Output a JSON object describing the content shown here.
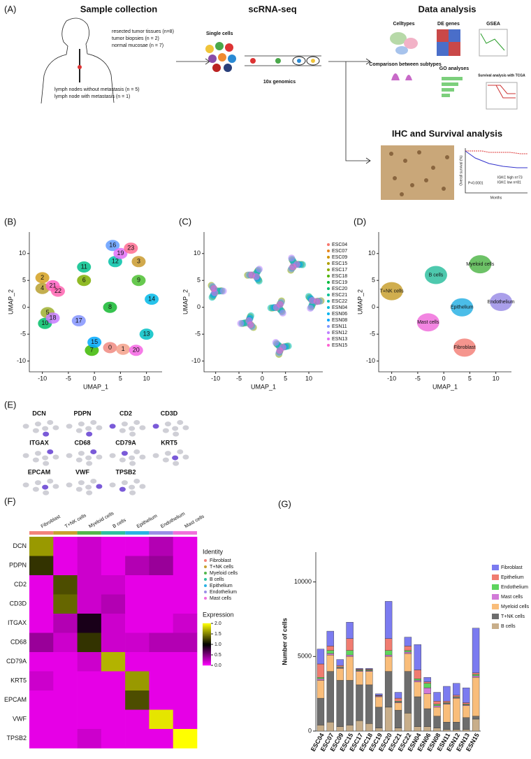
{
  "panel_a": {
    "label": "(A)",
    "sample_title": "Sample collection",
    "samples": [
      "resected tumor tissues (n=8)",
      "tumor biopsies (n = 2)",
      "normal mucosae (n = 7)"
    ],
    "lymph": [
      "lymph nodes without metastasis (n = 5)",
      "lymph node with metastasis (n = 1)"
    ],
    "seq_title": "scRNA-seq",
    "single_cells": "Single cells",
    "platform": "10x genomics",
    "analysis_title": "Data analysis",
    "celltypes": "Celltypes",
    "de_genes": "DE genes",
    "gsea": "GSEA",
    "comparison": "Comparison between subtypes",
    "go": "GO analyses",
    "survival": "Survival analysis with TCGA",
    "ihc_title": "IHC and Survival analysis",
    "km_p": "P<0.0001",
    "km_high": "IGKC high n=73",
    "km_low": "IGKC low n=81",
    "km_x": "Months",
    "km_y": "Overall survival (%)"
  },
  "chart_data": [
    {
      "type": "umap",
      "panel": "(B)",
      "xlabel": "UMAP_1",
      "ylabel": "UMAP_2",
      "xlim": [
        -12.5,
        13
      ],
      "ylim": [
        -12,
        14
      ],
      "xticks": [
        -10,
        -5,
        0,
        5,
        10
      ],
      "yticks": [
        -10,
        -5,
        0,
        5,
        10
      ],
      "clusters": [
        {
          "label": "0",
          "x": 3,
          "y": -7.5,
          "color": "#f08a80"
        },
        {
          "label": "1",
          "x": 5.5,
          "y": -7.8,
          "color": "#f4a08a"
        },
        {
          "label": "2",
          "x": -10,
          "y": 5.5,
          "color": "#d4a020"
        },
        {
          "label": "3",
          "x": 8.5,
          "y": 8.5,
          "color": "#c99a2e"
        },
        {
          "label": "4",
          "x": -10,
          "y": 3.5,
          "color": "#b9a030"
        },
        {
          "label": "5",
          "x": -9,
          "y": -1,
          "color": "#9fb030"
        },
        {
          "label": "6",
          "x": -2,
          "y": 5,
          "color": "#7cae00"
        },
        {
          "label": "7",
          "x": -0.5,
          "y": -8,
          "color": "#3cb800"
        },
        {
          "label": "8",
          "x": 3,
          "y": 0,
          "color": "#14b830"
        },
        {
          "label": "9",
          "x": 8.5,
          "y": 5,
          "color": "#4cc030"
        },
        {
          "label": "10",
          "x": -9.5,
          "y": -3,
          "color": "#00be67"
        },
        {
          "label": "11",
          "x": -2,
          "y": 7.5,
          "color": "#00c08b"
        },
        {
          "label": "12",
          "x": 4,
          "y": 8.5,
          "color": "#00c1a7"
        },
        {
          "label": "13",
          "x": 10,
          "y": -5,
          "color": "#00bfc4"
        },
        {
          "label": "14",
          "x": 11,
          "y": 1.5,
          "color": "#00b8e7"
        },
        {
          "label": "15",
          "x": 0,
          "y": -6.5,
          "color": "#00a9ff"
        },
        {
          "label": "16",
          "x": 3.5,
          "y": 11.5,
          "color": "#619cff"
        },
        {
          "label": "17",
          "x": -3,
          "y": -2.5,
          "color": "#8494ff"
        },
        {
          "label": "18",
          "x": -8,
          "y": -2,
          "color": "#c77cff"
        },
        {
          "label": "19",
          "x": 5,
          "y": 10,
          "color": "#e26ef7"
        },
        {
          "label": "20",
          "x": 8,
          "y": -8,
          "color": "#f564e3"
        },
        {
          "label": "21",
          "x": -8,
          "y": 4,
          "color": "#ff61c3"
        },
        {
          "label": "22",
          "x": -7,
          "y": 3,
          "color": "#ff64b0"
        },
        {
          "label": "23",
          "x": 7,
          "y": 11,
          "color": "#ff6c91"
        }
      ]
    },
    {
      "type": "umap",
      "panel": "(C)",
      "xlabel": "UMAP_1",
      "ylabel": "UMAP_2",
      "xlim": [
        -12.5,
        13
      ],
      "ylim": [
        -12,
        14
      ],
      "xticks": [
        -10,
        -5,
        0,
        5,
        10
      ],
      "yticks": [
        -10,
        -5,
        0,
        5,
        10
      ],
      "samples": [
        {
          "name": "ESC04",
          "color": "#f8766d"
        },
        {
          "name": "ESC07",
          "color": "#e7861b"
        },
        {
          "name": "ESC09",
          "color": "#cf9400"
        },
        {
          "name": "ESC15",
          "color": "#b19f00"
        },
        {
          "name": "ESC17",
          "color": "#8aab00"
        },
        {
          "name": "ESC18",
          "color": "#4fb400"
        },
        {
          "name": "ESC19",
          "color": "#00ba38"
        },
        {
          "name": "ESC20",
          "color": "#00be6c"
        },
        {
          "name": "ESC21",
          "color": "#00c094"
        },
        {
          "name": "ESC22",
          "color": "#00c0b8"
        },
        {
          "name": "ESN04",
          "color": "#00bcd8"
        },
        {
          "name": "ESN06",
          "color": "#00b4f0"
        },
        {
          "name": "ESN08",
          "color": "#00a5ff"
        },
        {
          "name": "ESN11",
          "color": "#7f96ff"
        },
        {
          "name": "ESN12",
          "color": "#bc81ff"
        },
        {
          "name": "ESN13",
          "color": "#e26ef7"
        },
        {
          "name": "ESN15",
          "color": "#fd61d1"
        }
      ]
    },
    {
      "type": "umap",
      "panel": "(D)",
      "xlabel": "UMAP_1",
      "ylabel": "UMAP_2",
      "xlim": [
        -12.5,
        13
      ],
      "ylim": [
        -12,
        14
      ],
      "xticks": [
        -10,
        -5,
        0,
        5,
        10
      ],
      "yticks": [
        -10,
        -5,
        0,
        5,
        10
      ],
      "groups": [
        {
          "name": "Myeloid cells",
          "x": 7,
          "y": 8,
          "color": "#53b74c"
        },
        {
          "name": "B cells",
          "x": -1.5,
          "y": 6,
          "color": "#2fc0a0"
        },
        {
          "name": "T+NK cells",
          "x": -10,
          "y": 3,
          "color": "#c8a030"
        },
        {
          "name": "Epithelium",
          "x": 3.5,
          "y": 0,
          "color": "#2bb2e4"
        },
        {
          "name": "Endothelium",
          "x": 11,
          "y": 1,
          "color": "#9b8ee6"
        },
        {
          "name": "Mast cells",
          "x": -3,
          "y": -2.8,
          "color": "#f070dc"
        },
        {
          "name": "Fibroblast",
          "x": 4,
          "y": -7.5,
          "color": "#f3837a"
        }
      ]
    },
    {
      "type": "feature",
      "panel": "(E)",
      "genes": [
        "DCN",
        "PDPN",
        "CD2",
        "CD3D",
        "ITGAX",
        "CD68",
        "CD79A",
        "KRT5",
        "EPCAM",
        "VWF",
        "TPSB2"
      ]
    },
    {
      "type": "heatmap",
      "panel": "(F)",
      "columns": [
        "Fibroblast",
        "T+NK cells",
        "Myeloid cells",
        "B cells",
        "Epithelium",
        "Endothelium",
        "Mast cells"
      ],
      "column_colors": [
        "#f3837a",
        "#c8a030",
        "#53b74c",
        "#2fc0a0",
        "#2bb2e4",
        "#9b8ee6",
        "#f070dc"
      ],
      "rows": [
        "DCN",
        "PDPN",
        "CD2",
        "CD3D",
        "ITGAX",
        "CD68",
        "CD79A",
        "KRT5",
        "EPCAM",
        "VWF",
        "TPSB2"
      ],
      "values": [
        [
          1.6,
          0.1,
          0.2,
          0.1,
          0.1,
          0.3,
          0.1
        ],
        [
          1.2,
          0.1,
          0.2,
          0.1,
          0.3,
          0.4,
          0.1
        ],
        [
          0.1,
          1.3,
          0.2,
          0.2,
          0.1,
          0.1,
          0.1
        ],
        [
          0.1,
          1.4,
          0.2,
          0.3,
          0.1,
          0.1,
          0.1
        ],
        [
          0.1,
          0.3,
          0.9,
          0.2,
          0.1,
          0.1,
          0.2
        ],
        [
          0.4,
          0.2,
          1.2,
          0.2,
          0.2,
          0.3,
          0.3
        ],
        [
          0.1,
          0.1,
          0.2,
          1.7,
          0.1,
          0.1,
          0.1
        ],
        [
          0.2,
          0.1,
          0.1,
          0.1,
          1.6,
          0.1,
          0.1
        ],
        [
          0.1,
          0.1,
          0.1,
          0.1,
          1.3,
          0.1,
          0.1
        ],
        [
          0.1,
          0.1,
          0.1,
          0.1,
          0.1,
          1.9,
          0.1
        ],
        [
          0.1,
          0.1,
          0.2,
          0.1,
          0.1,
          0.1,
          2.0
        ]
      ],
      "identity_title": "Identity",
      "scale_title": "Expression",
      "clim": [
        0,
        2
      ],
      "scale_ticks": [
        {
          "value": 0,
          "label": "0.0"
        },
        {
          "value": 0.5,
          "label": "0.5"
        },
        {
          "value": 1,
          "label": "1.0"
        },
        {
          "value": 1.5,
          "label": "1.5"
        },
        {
          "value": 2,
          "label": "2.0"
        }
      ]
    },
    {
      "type": "stacked-bar",
      "panel": "(G)",
      "ylabel": "Number of cells",
      "ylim": [
        0,
        12000
      ],
      "yticks": [
        0,
        5000,
        10000
      ],
      "categories": [
        "ESC04",
        "ESC07",
        "ESC09",
        "ESC15",
        "ESC17",
        "ESC18",
        "ESC19",
        "ESC20",
        "ESC21",
        "ESC22",
        "ESN04",
        "ESN06",
        "ESN08",
        "ESN11",
        "ESN12",
        "ESN13",
        "ESN15"
      ],
      "series": [
        {
          "name": "B cells",
          "color": "#c8ae8a",
          "values": [
            400,
            600,
            300,
            400,
            700,
            500,
            200,
            1600,
            200,
            1200,
            300,
            300,
            200,
            100,
            100,
            100,
            800
          ]
        },
        {
          "name": "T+NK cells",
          "color": "#6d6d6d",
          "values": [
            1800,
            3400,
            3100,
            3000,
            2400,
            2600,
            1400,
            2400,
            1200,
            2800,
            2000,
            1200,
            800,
            500,
            500,
            800,
            200
          ]
        },
        {
          "name": "Myeloid cells",
          "color": "#f9bd7a",
          "values": [
            1200,
            1100,
            800,
            1600,
            900,
            900,
            700,
            1000,
            500,
            1200,
            1000,
            1000,
            600,
            1200,
            1600,
            800,
            2600
          ]
        },
        {
          "name": "Mast cells",
          "color": "#d27ad8",
          "values": [
            100,
            100,
            50,
            100,
            50,
            50,
            50,
            100,
            50,
            100,
            100,
            400,
            100,
            50,
            50,
            50,
            100
          ]
        },
        {
          "name": "Endothelium",
          "color": "#5ed45e",
          "values": [
            100,
            200,
            50,
            300,
            50,
            50,
            20,
            300,
            50,
            100,
            100,
            300,
            100,
            50,
            50,
            50,
            100
          ]
        },
        {
          "name": "Epithelium",
          "color": "#f07c70",
          "values": [
            900,
            300,
            100,
            800,
            50,
            50,
            30,
            800,
            200,
            300,
            600,
            100,
            200,
            100,
            100,
            100,
            100
          ]
        },
        {
          "name": "Fibroblast",
          "color": "#7b7bf0",
          "values": [
            1000,
            1000,
            400,
            1100,
            50,
            50,
            100,
            2500,
            400,
            600,
            1700,
            300,
            600,
            1000,
            800,
            1000,
            3000
          ]
        }
      ]
    }
  ]
}
